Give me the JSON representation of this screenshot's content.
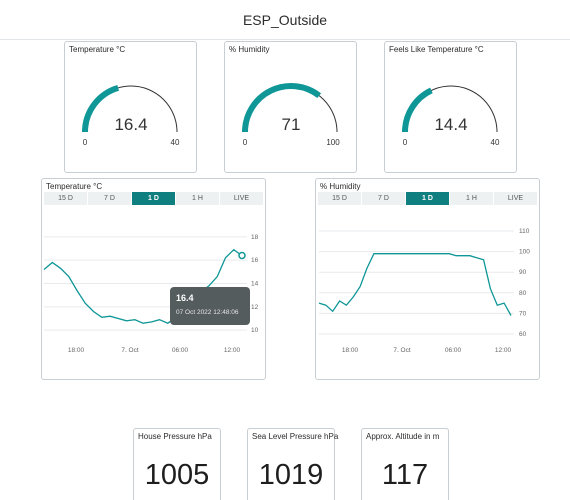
{
  "header": {
    "title": "ESP_Outside"
  },
  "gauges": [
    {
      "title": "Temperature °C",
      "value_text": "16.4",
      "min_label": "0",
      "max_label": "40",
      "fraction": 0.41
    },
    {
      "title": "% Humidity",
      "value_text": "71",
      "min_label": "0",
      "max_label": "100",
      "fraction": 0.71
    },
    {
      "title": "Feels Like Temperature °C",
      "value_text": "14.4",
      "min_label": "0",
      "max_label": "40",
      "fraction": 0.36
    }
  ],
  "charts": [
    {
      "title": "Temperature °C",
      "tabs": [
        "15 D",
        "7 D",
        "1 D",
        "1 H",
        "LIVE"
      ],
      "active_tab": "1 D",
      "y_ticks": [
        "18",
        "16",
        "14",
        "12",
        "10"
      ],
      "x_ticks": [
        "18:00",
        "7. Oct",
        "06:00",
        "12:00"
      ],
      "tooltip": {
        "value": "16.4",
        "time": "07 Oct 2022 12:48:06"
      }
    },
    {
      "title": "% Humidity",
      "tabs": [
        "15 D",
        "7 D",
        "1 D",
        "1 H",
        "LIVE"
      ],
      "active_tab": "1 D",
      "y_ticks": [
        "110",
        "100",
        "90",
        "80",
        "70",
        "60"
      ],
      "x_ticks": [
        "18:00",
        "7. Oct",
        "06:00",
        "12:00"
      ]
    }
  ],
  "chart_data": [
    {
      "type": "line",
      "title": "Temperature °C",
      "ylim": [
        9.5,
        18.5
      ],
      "x": [
        "14:00",
        "15:00",
        "16:00",
        "17:00",
        "18:00",
        "19:00",
        "20:00",
        "21:00",
        "22:00",
        "23:00",
        "00:00",
        "01:00",
        "02:00",
        "03:00",
        "04:00",
        "05:00",
        "06:00",
        "07:00",
        "08:00",
        "09:00",
        "10:00",
        "11:00",
        "12:00",
        "12:30",
        "12:48"
      ],
      "y": [
        15.2,
        15.8,
        15.3,
        14.6,
        13.4,
        12.3,
        11.6,
        11.1,
        11.2,
        11.0,
        10.8,
        10.9,
        10.6,
        10.7,
        10.9,
        10.6,
        11.1,
        11.5,
        12.6,
        13.3,
        13.8,
        14.6,
        16.2,
        16.9,
        16.4
      ]
    },
    {
      "type": "line",
      "title": "% Humidity",
      "ylim": [
        60,
        110
      ],
      "x": [
        "13:00",
        "13:30",
        "14:00",
        "14:30",
        "15:00",
        "16:00",
        "17:00",
        "18:00",
        "19:00",
        "20:00",
        "21:00",
        "22:00",
        "23:00",
        "00:00",
        "01:00",
        "02:00",
        "03:00",
        "04:00",
        "05:00",
        "06:00",
        "07:00",
        "08:00",
        "09:00",
        "10:00",
        "11:00",
        "11:30",
        "12:00",
        "12:30",
        "13:00"
      ],
      "y": [
        75,
        74,
        71,
        76,
        74,
        78,
        83,
        92,
        99,
        99,
        99,
        99,
        99,
        99,
        99,
        99,
        99,
        99,
        99,
        99,
        98,
        98,
        98,
        97,
        96,
        82,
        74,
        75,
        69
      ]
    }
  ],
  "tiles": [
    {
      "title": "House Pressure hPa",
      "value": "1005"
    },
    {
      "title": "Sea Level Pressure hPa",
      "value": "1019"
    },
    {
      "title": "Approx. Altitude in m",
      "value": "117"
    }
  ],
  "colors": {
    "accent": "#0f9696",
    "track": "#333333",
    "tab_active": "#0f7f80"
  }
}
